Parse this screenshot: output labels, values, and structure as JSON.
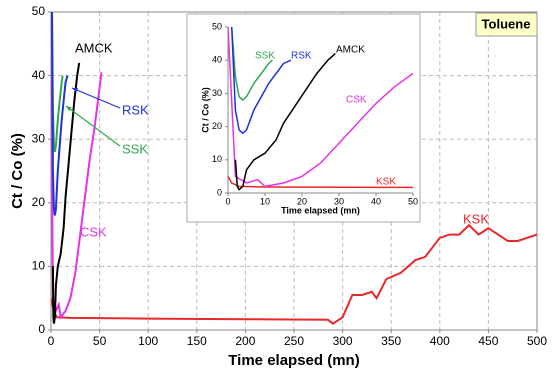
{
  "chart_data": [
    {
      "type": "line",
      "title": "Toluene",
      "xlabel": "Time elapsed (mn)",
      "ylabel": "Ct / Co (%)",
      "xlim": [
        0,
        500
      ],
      "ylim": [
        0,
        50
      ],
      "xticks": [
        0,
        50,
        100,
        150,
        200,
        250,
        300,
        350,
        400,
        450,
        500
      ],
      "yticks": [
        0,
        10,
        20,
        30,
        40,
        50
      ],
      "grid": true,
      "series": [
        {
          "name": "KSK",
          "color": "#e8282a",
          "x": [
            0,
            3,
            6,
            20,
            100,
            200,
            285,
            290,
            300,
            310,
            320,
            330,
            335,
            345,
            360,
            375,
            385,
            400,
            410,
            420,
            430,
            440,
            450,
            460,
            470,
            480,
            490,
            500
          ],
          "values": [
            5,
            3,
            2,
            1.9,
            1.8,
            1.7,
            1.6,
            1,
            2,
            5.5,
            5.5,
            6,
            5,
            8,
            9,
            11,
            11.5,
            14.5,
            15,
            15,
            16.5,
            15,
            16,
            15,
            14,
            14,
            14.5,
            15
          ]
        },
        {
          "name": "CSK",
          "color": "#e632e6",
          "x": [
            0,
            2,
            5,
            8,
            10,
            15,
            20,
            25,
            30,
            35,
            40,
            45,
            52
          ],
          "values": [
            50,
            5,
            3,
            4,
            2,
            3,
            5,
            9,
            15,
            21,
            27,
            32,
            40.5
          ]
        },
        {
          "name": "SSK",
          "color": "#2ea84e",
          "x": [
            1,
            2,
            3,
            4,
            5,
            7,
            9,
            11,
            12
          ],
          "values": [
            50,
            35,
            29,
            28,
            29,
            33,
            36,
            39,
            40
          ]
        },
        {
          "name": "RSK",
          "color": "#1f33d6",
          "x": [
            1,
            2,
            3,
            4,
            5,
            7,
            9,
            11,
            13,
            15,
            17
          ],
          "values": [
            50,
            25,
            19,
            18,
            19,
            25,
            29,
            33,
            36,
            39,
            40
          ]
        },
        {
          "name": "AMCK",
          "color": "#000000",
          "x": [
            2,
            2.5,
            3,
            4,
            5,
            7,
            10,
            13,
            15,
            18,
            21,
            24,
            27,
            29
          ],
          "values": [
            10,
            2,
            1,
            2,
            7,
            10,
            12,
            16,
            21,
            26,
            31,
            36,
            40,
            42
          ]
        }
      ]
    },
    {
      "type": "line",
      "xlabel": "Time elapsed (mn)",
      "ylabel": "Ct / Co (%)",
      "xlim": [
        0,
        50
      ],
      "ylim": [
        0,
        50
      ],
      "xticks": [
        0,
        10,
        20,
        30,
        40,
        50
      ],
      "yticks": [
        0,
        10,
        20,
        30,
        40,
        50
      ],
      "grid": false,
      "series": [
        {
          "name": "KSK",
          "color": "#e8282a",
          "x": [
            0,
            1,
            3,
            10,
            50
          ],
          "values": [
            5,
            3,
            2,
            1.8,
            1.7
          ]
        },
        {
          "name": "CSK",
          "color": "#e632e6",
          "x": [
            0,
            2,
            5,
            8,
            10,
            15,
            20,
            25,
            30,
            35,
            40,
            45,
            50
          ],
          "values": [
            50,
            5,
            3,
            4,
            2,
            3,
            5,
            9,
            15,
            21,
            27,
            32,
            36
          ]
        },
        {
          "name": "SSK",
          "color": "#2ea84e",
          "x": [
            1,
            2,
            3,
            4,
            5,
            7,
            9,
            11,
            12
          ],
          "values": [
            50,
            35,
            29,
            28,
            29,
            33,
            36,
            39,
            40
          ]
        },
        {
          "name": "RSK",
          "color": "#1f33d6",
          "x": [
            1,
            2,
            3,
            4,
            5,
            7,
            9,
            11,
            13,
            15,
            17
          ],
          "values": [
            50,
            25,
            19,
            18,
            19,
            25,
            29,
            33,
            36,
            39,
            40
          ]
        },
        {
          "name": "AMCK",
          "color": "#000000",
          "x": [
            2,
            2.5,
            3,
            4,
            5,
            7,
            10,
            13,
            15,
            18,
            21,
            24,
            27,
            29
          ],
          "values": [
            10,
            2,
            1,
            2,
            7,
            10,
            12,
            16,
            21,
            26,
            31,
            36,
            40,
            42
          ]
        }
      ]
    }
  ]
}
